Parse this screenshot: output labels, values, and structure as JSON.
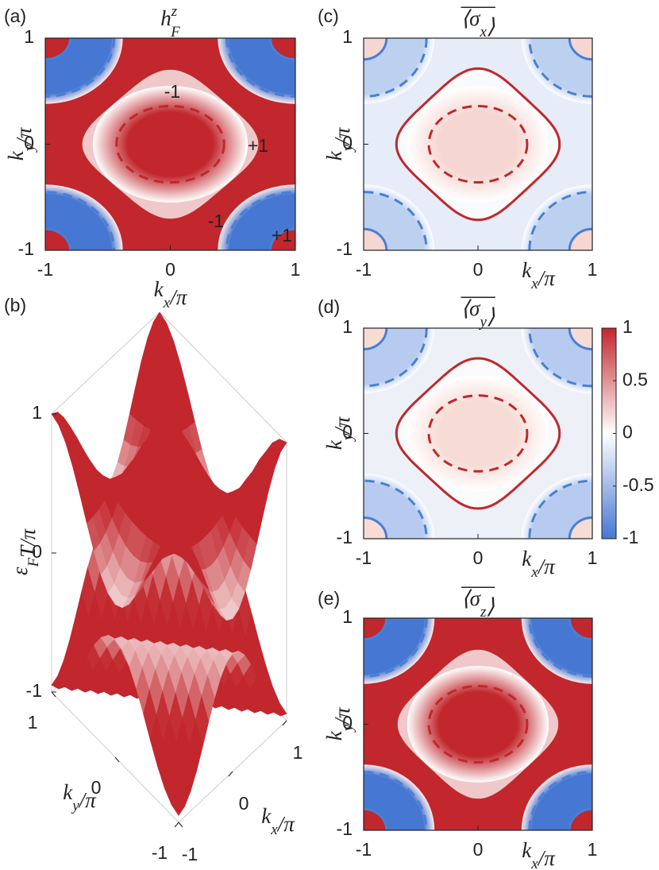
{
  "chart_data": [
    {
      "type": "heatmap",
      "panel_label": "(a)",
      "title": {
        "base": "h",
        "sup": "z",
        "sub": "F"
      },
      "xlabel": {
        "base": "k",
        "sub": "x",
        "rest": "/π"
      },
      "ylabel": {
        "base": "k",
        "sub": "y",
        "rest": "/π"
      },
      "xlim": [
        -1,
        1
      ],
      "ylim": [
        -1,
        1
      ],
      "xticks": [
        -1,
        0,
        1
      ],
      "yticks": [
        -1,
        0,
        1
      ],
      "background_color": "#c1272d",
      "corner_color": "#4677d2",
      "inner_color": "#c1272d",
      "annotations": [
        {
          "text": "-1",
          "color": "#e8322b"
        },
        {
          "text": "+1",
          "color": "#e8322b"
        },
        {
          "text": "-1",
          "color": "#2a35c9"
        },
        {
          "text": "+1",
          "color": "#2a35c9"
        }
      ]
    },
    {
      "type": "surface",
      "panel_label": "(b)",
      "xlabel": {
        "base": "k",
        "sub": "x",
        "rest": "/π"
      },
      "ylabel": {
        "base": "k",
        "sub": "y",
        "rest": "/π"
      },
      "zlabel": {
        "base": "ε",
        "sub": "F",
        "rest": "T/π"
      },
      "xlim": [
        -1,
        1
      ],
      "ylim": [
        -1,
        1
      ],
      "zlim": [
        -1,
        1
      ],
      "xticks": [
        -1,
        0,
        1
      ],
      "yticks": [
        -1,
        0,
        1
      ],
      "zticks": [
        -1,
        0,
        1
      ]
    },
    {
      "type": "heatmap",
      "panel_label": "(c)",
      "title": {
        "overline": true,
        "base": "⟨σ",
        "sub": "x",
        "rest": "⟩"
      },
      "xlabel": {
        "base": "k",
        "sub": "x",
        "rest": "/π"
      },
      "ylabel": {
        "base": "k",
        "sub": "y",
        "rest": "/π"
      },
      "xlim": [
        -1,
        1
      ],
      "ylim": [
        -1,
        1
      ],
      "xticks": [
        -1,
        0,
        1
      ],
      "yticks": [
        -1,
        0,
        1
      ],
      "background_color": "#e6ecf8",
      "corner_color": "#bcd0f0",
      "inner_color": "#f6d6d2"
    },
    {
      "type": "heatmap",
      "panel_label": "(d)",
      "title": {
        "overline": true,
        "base": "⟨σ",
        "sub": "y",
        "rest": "⟩"
      },
      "xlabel": {
        "base": "k",
        "sub": "x",
        "rest": "/π"
      },
      "ylabel": {
        "base": "k",
        "sub": "y",
        "rest": "/π"
      },
      "xlim": [
        -1,
        1
      ],
      "ylim": [
        -1,
        1
      ],
      "xticks": [
        -1,
        0,
        1
      ],
      "yticks": [
        -1,
        0,
        1
      ],
      "background_color": "#eef0f8",
      "corner_color": "#b6cbef",
      "inner_color": "#f7dcd6",
      "colorbar": {
        "lim": [
          -1,
          1
        ],
        "ticks": [
          -1,
          -0.5,
          0,
          0.5,
          1
        ],
        "colors": [
          "#4677d2",
          "#ffffff",
          "#c1272d"
        ]
      }
    },
    {
      "type": "heatmap",
      "panel_label": "(e)",
      "title": {
        "overline": true,
        "base": "⟨σ",
        "sub": "z",
        "rest": "⟩"
      },
      "xlabel": {
        "base": "k",
        "sub": "x",
        "rest": "/π"
      },
      "ylabel": {
        "base": "k",
        "sub": "y",
        "rest": "/π"
      },
      "xlim": [
        -1,
        1
      ],
      "ylim": [
        -1,
        1
      ],
      "xticks": [
        -1,
        0,
        1
      ],
      "yticks": [
        -1,
        0,
        1
      ],
      "background_color": "#c1272d",
      "corner_color": "#4677d2",
      "inner_color": "#c1272d"
    }
  ]
}
